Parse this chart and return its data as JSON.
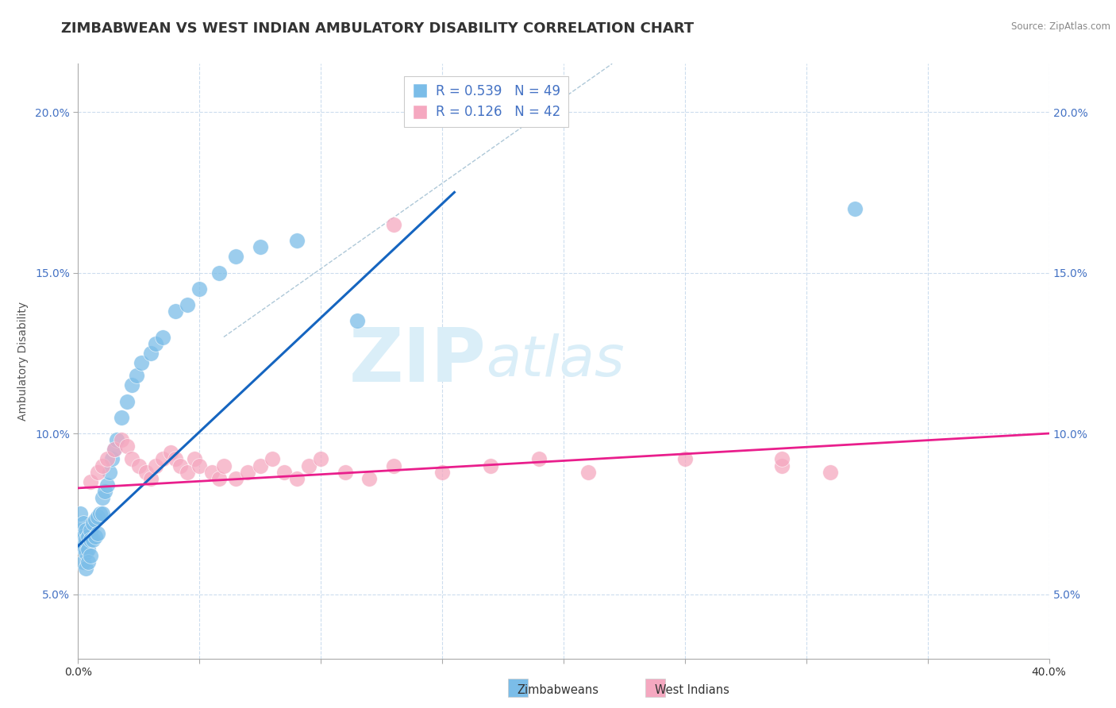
{
  "title": "ZIMBABWEAN VS WEST INDIAN AMBULATORY DISABILITY CORRELATION CHART",
  "source_text": "Source: ZipAtlas.com",
  "ylabel": "Ambulatory Disability",
  "xlim": [
    0.0,
    0.4
  ],
  "ylim": [
    0.03,
    0.215
  ],
  "yticks": [
    0.05,
    0.1,
    0.15,
    0.2
  ],
  "ytick_labels": [
    "5.0%",
    "10.0%",
    "15.0%",
    "20.0%"
  ],
  "legend_r_blue": "R = 0.539",
  "legend_n_blue": "N = 49",
  "legend_r_pink": "R = 0.126",
  "legend_n_pink": "N = 42",
  "legend_label_blue": "Zimbabweans",
  "legend_label_pink": "West Indians",
  "blue_color": "#7bbde8",
  "pink_color": "#f5a8c0",
  "blue_line_color": "#1565C0",
  "pink_line_color": "#E91E8C",
  "ref_line_color": "#aec8d8",
  "watermark_color": "#daeef8",
  "title_fontsize": 13,
  "axis_label_fontsize": 10,
  "tick_fontsize": 10,
  "blue_scatter_x": [
    0.001,
    0.001,
    0.001,
    0.002,
    0.002,
    0.002,
    0.002,
    0.003,
    0.003,
    0.003,
    0.003,
    0.004,
    0.004,
    0.004,
    0.005,
    0.005,
    0.005,
    0.006,
    0.006,
    0.007,
    0.007,
    0.008,
    0.008,
    0.009,
    0.01,
    0.01,
    0.011,
    0.012,
    0.013,
    0.014,
    0.015,
    0.016,
    0.018,
    0.02,
    0.022,
    0.024,
    0.026,
    0.03,
    0.032,
    0.035,
    0.04,
    0.045,
    0.05,
    0.058,
    0.065,
    0.075,
    0.09,
    0.115,
    0.32
  ],
  "blue_scatter_y": [
    0.075,
    0.07,
    0.065,
    0.072,
    0.068,
    0.065,
    0.06,
    0.07,
    0.067,
    0.063,
    0.058,
    0.068,
    0.064,
    0.06,
    0.07,
    0.067,
    0.062,
    0.072,
    0.067,
    0.073,
    0.068,
    0.074,
    0.069,
    0.075,
    0.08,
    0.075,
    0.082,
    0.084,
    0.088,
    0.092,
    0.095,
    0.098,
    0.105,
    0.11,
    0.115,
    0.118,
    0.122,
    0.125,
    0.128,
    0.13,
    0.138,
    0.14,
    0.145,
    0.15,
    0.155,
    0.158,
    0.16,
    0.135,
    0.17
  ],
  "pink_scatter_x": [
    0.005,
    0.008,
    0.01,
    0.012,
    0.015,
    0.018,
    0.02,
    0.022,
    0.025,
    0.028,
    0.03,
    0.032,
    0.035,
    0.038,
    0.04,
    0.042,
    0.045,
    0.048,
    0.05,
    0.055,
    0.058,
    0.06,
    0.065,
    0.07,
    0.075,
    0.08,
    0.085,
    0.09,
    0.095,
    0.1,
    0.11,
    0.12,
    0.13,
    0.15,
    0.17,
    0.19,
    0.21,
    0.25,
    0.29,
    0.31,
    0.29,
    0.13
  ],
  "pink_scatter_y": [
    0.085,
    0.088,
    0.09,
    0.092,
    0.095,
    0.098,
    0.096,
    0.092,
    0.09,
    0.088,
    0.086,
    0.09,
    0.092,
    0.094,
    0.092,
    0.09,
    0.088,
    0.092,
    0.09,
    0.088,
    0.086,
    0.09,
    0.086,
    0.088,
    0.09,
    0.092,
    0.088,
    0.086,
    0.09,
    0.092,
    0.088,
    0.086,
    0.09,
    0.088,
    0.09,
    0.092,
    0.088,
    0.092,
    0.09,
    0.088,
    0.092,
    0.165
  ],
  "blue_line_x": [
    0.0,
    0.155
  ],
  "blue_line_y": [
    0.065,
    0.175
  ],
  "pink_line_x": [
    0.0,
    0.4
  ],
  "pink_line_y": [
    0.083,
    0.1
  ],
  "ref_line_x": [
    0.06,
    0.22
  ],
  "ref_line_y": [
    0.13,
    0.215
  ]
}
